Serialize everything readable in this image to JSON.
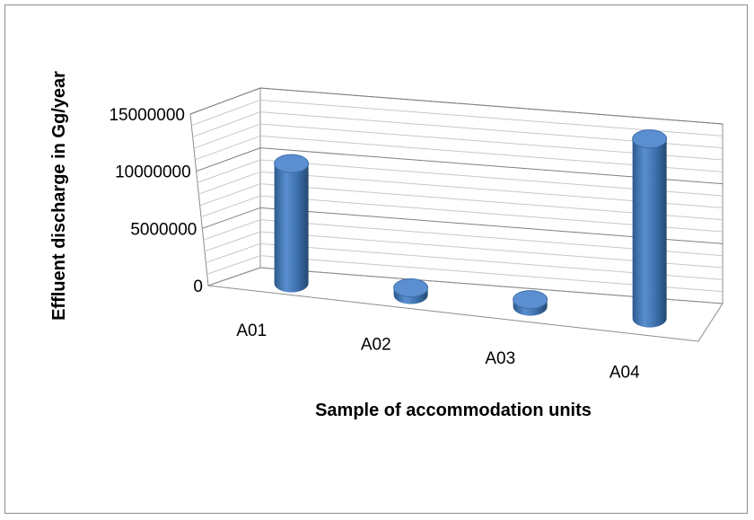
{
  "chart_data": {
    "type": "bar",
    "style": "3d-cylinder",
    "categories": [
      "A01",
      "A02",
      "A03",
      "A04"
    ],
    "values": [
      10000000,
      600000,
      600000,
      15000000
    ],
    "xlabel": "Sample of accommodation units",
    "ylabel": "Effluent discharge in Gg/year",
    "ylim": [
      0,
      15000000
    ],
    "yticks": [
      "0",
      "5000000",
      "10000000",
      "15000000"
    ],
    "grid": true,
    "legend": "none",
    "bar_color": "#4f81bd"
  }
}
